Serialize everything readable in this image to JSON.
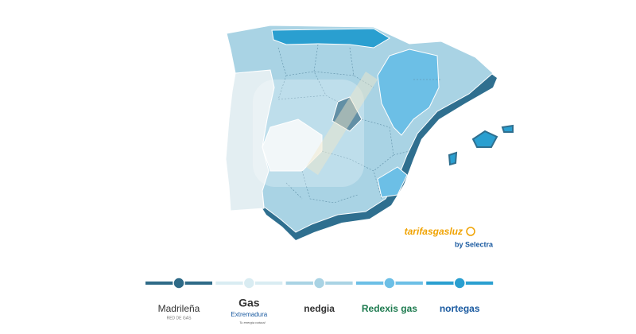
{
  "logo": {
    "brand": "tarifasgasluz",
    "by": "by Selectra"
  },
  "legend": [
    {
      "name": "Madrileña",
      "subtitle": "RED DE GAS",
      "color": "#2e6a87"
    },
    {
      "name": "Gas",
      "subtitle": "Extremadura",
      "tagline": "Tu energía natural",
      "color": "#d9ecf2"
    },
    {
      "name": "nedgia",
      "color": "#a9d3e4"
    },
    {
      "name": "Redexis gas",
      "color": "#6cbfe6"
    },
    {
      "name": "nortegas",
      "color": "#2a9fd0"
    }
  ]
}
